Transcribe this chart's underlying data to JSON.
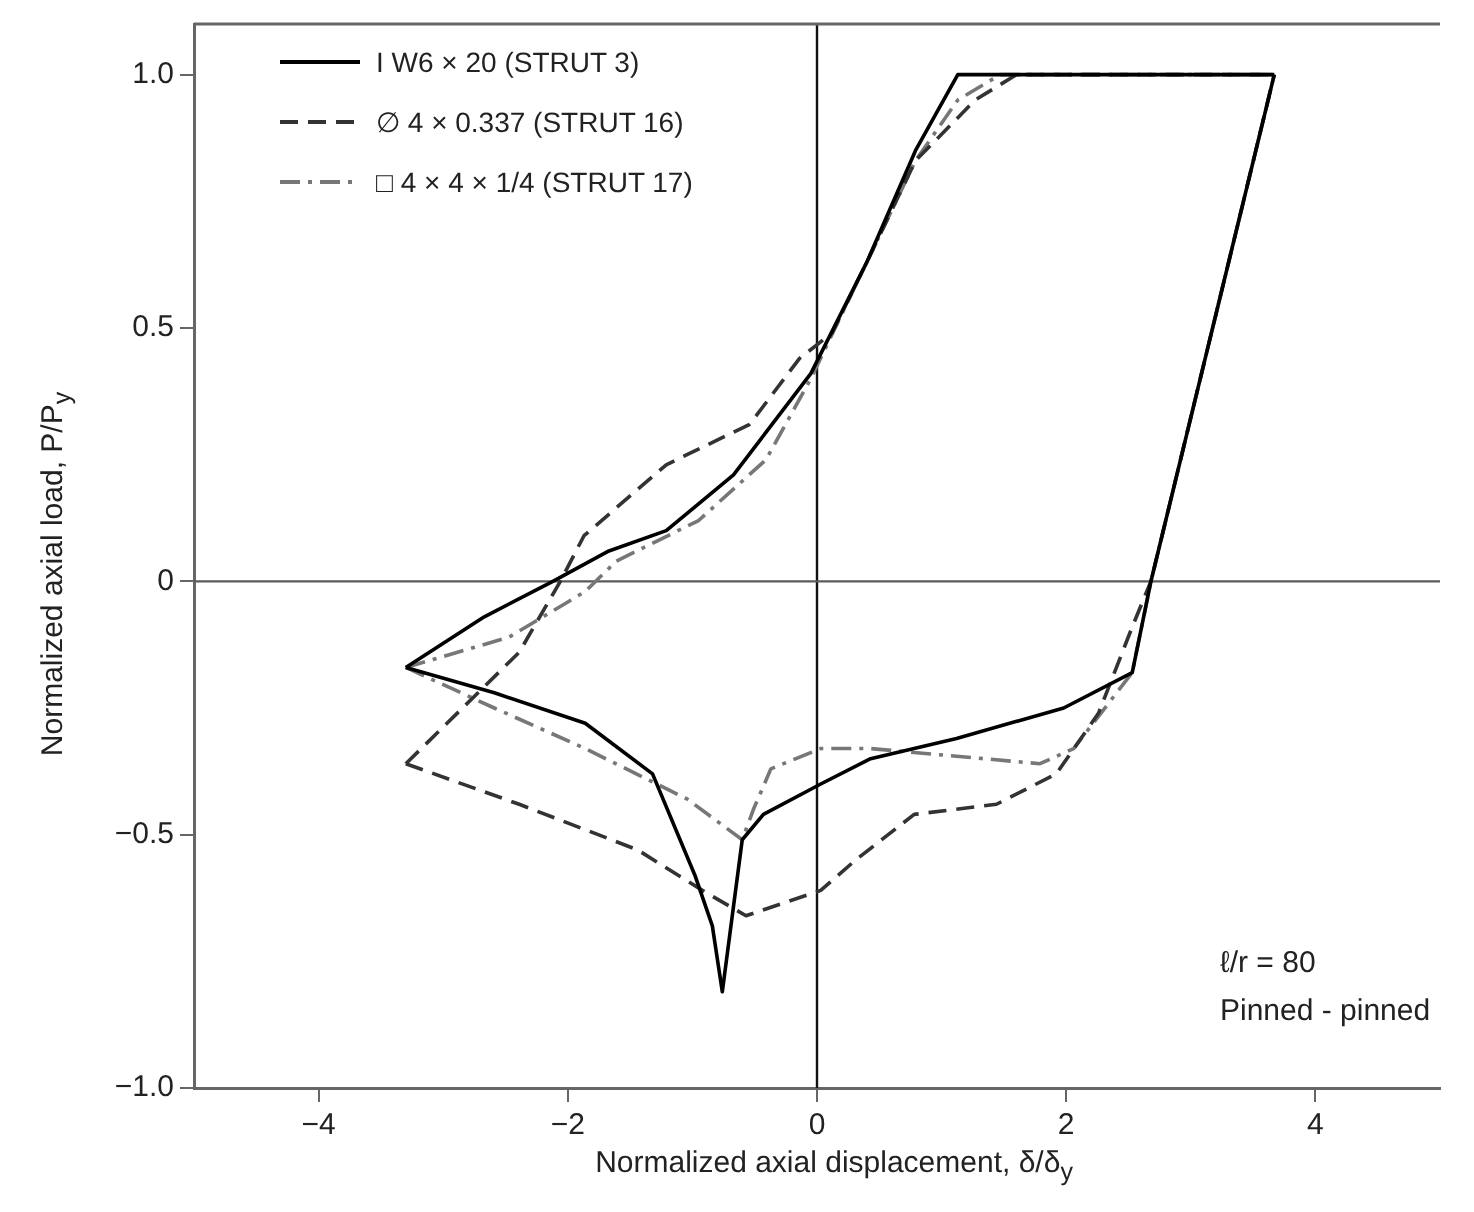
{
  "chart_data": {
    "type": "line",
    "xlabel": "Normalized axial displacement, δ/δ$_{y}$",
    "ylabel": "Normalized axial load, P/P$_{y}$",
    "xlim": [
      -5,
      5
    ],
    "ylim": [
      -1,
      1.1
    ],
    "xticks": [
      {
        "value": -4,
        "label": "−4"
      },
      {
        "value": -2,
        "label": "−2"
      },
      0,
      2,
      4
    ],
    "yticks": [
      {
        "value": -1,
        "label": "−1.0"
      },
      {
        "value": -0.5,
        "label": "−0.5"
      },
      0,
      0.5,
      {
        "value": 1,
        "label": "1.0"
      }
    ],
    "grid": false,
    "legend": "top left",
    "marker": "none",
    "ref_lines": [
      {
        "axis": "x",
        "value": 0,
        "color": "#111111"
      },
      {
        "axis": "y",
        "value": 0,
        "color": "#5a5a5a"
      }
    ],
    "annotations": [
      "ℓ/r = 80",
      "Pinned - pinned"
    ],
    "series": [
      {
        "name": "I W6 × 20 (STRUT 3)",
        "color": "#000000",
        "line_style": "solid",
        "x": [
          -3.3,
          -2.67,
          -2.12,
          -1.67,
          -1.21,
          -0.67,
          -0.05,
          0.4,
          0.79,
          1.13,
          3.67
        ],
        "values": [
          -0.17,
          -0.07,
          0,
          0.06,
          0.1,
          0.21,
          0.41,
          0.63,
          0.85,
          1,
          1
        ]
      },
      {
        "color": "#000000",
        "line_style": "solid",
        "x": [
          -3.3,
          -2.59,
          -1.86,
          -1.32,
          -0.98,
          -0.84,
          -0.76,
          -0.6,
          -0.43,
          0.03,
          0.43,
          1.12,
          1.98,
          2.53,
          2.68,
          3.67
        ],
        "values": [
          -0.17,
          -0.22,
          -0.28,
          -0.38,
          -0.58,
          -0.68,
          -0.81,
          -0.51,
          -0.46,
          -0.4,
          -0.35,
          -0.31,
          -0.25,
          -0.18,
          0,
          1
        ]
      },
      {
        "name": "∅ 4 × 0.337 (STRUT 16)",
        "color": "#333333",
        "line_style": "dashed",
        "x": [
          -3.3,
          -2.39,
          -2.06,
          -1.87,
          -1.21,
          -0.54,
          -0.14,
          0.12,
          0.4,
          0.79,
          1.27,
          1.6,
          3.67
        ],
        "values": [
          -0.36,
          -0.14,
          0,
          0.09,
          0.23,
          0.31,
          0.44,
          0.49,
          0.63,
          0.83,
          0.95,
          1,
          1
        ]
      },
      {
        "color": "#333333",
        "line_style": "dashed",
        "x": [
          -3.3,
          -2.39,
          -1.44,
          -0.92,
          -0.57,
          0.03,
          0.31,
          0.78,
          1.44,
          1.92,
          2.26,
          2.53,
          2.68,
          3.67
        ],
        "values": [
          -0.36,
          -0.44,
          -0.53,
          -0.61,
          -0.66,
          -0.61,
          -0.55,
          -0.46,
          -0.44,
          -0.38,
          -0.26,
          -0.09,
          0,
          1
        ]
      },
      {
        "name": "□ 4 × 4 × 1/4 (STRUT 17)",
        "color": "#777777",
        "line_style": "dotted",
        "x": [
          -3.3,
          -2.47,
          -1.86,
          -1.61,
          -0.95,
          -0.41,
          -0.05,
          0.4,
          0.79,
          1.13,
          1.47,
          3.67
        ],
        "values": [
          -0.17,
          -0.11,
          -0.02,
          0.04,
          0.12,
          0.24,
          0.4,
          0.63,
          0.83,
          0.95,
          1,
          1
        ]
      },
      {
        "color": "#777777",
        "line_style": "dotted",
        "x": [
          -3.3,
          -2.59,
          -1.86,
          -1.04,
          -0.71,
          -0.6,
          -0.51,
          -0.37,
          0.03,
          0.43,
          1.79,
          2.06,
          2.53,
          2.68,
          3.67
        ],
        "values": [
          -0.17,
          -0.25,
          -0.33,
          -0.43,
          -0.49,
          -0.51,
          -0.45,
          -0.37,
          -0.33,
          -0.33,
          -0.36,
          -0.33,
          -0.18,
          0,
          1
        ]
      }
    ]
  }
}
